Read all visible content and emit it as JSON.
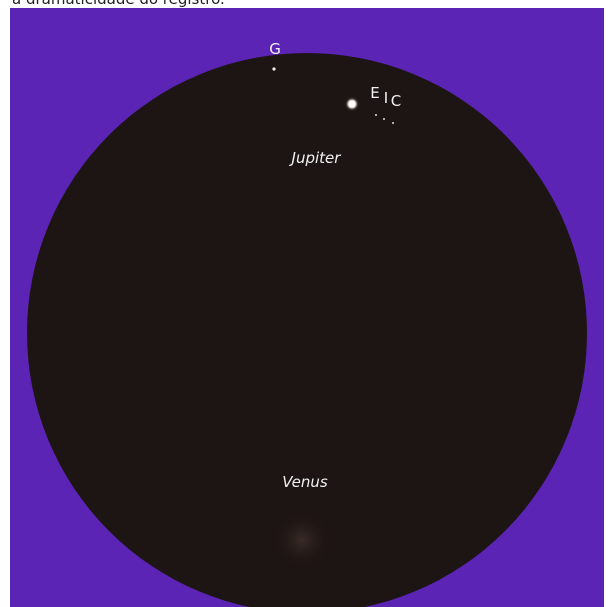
{
  "caption": "a dramaticidade do registro.",
  "labels": {
    "g": "G",
    "e": "E",
    "i": "I",
    "c": "C",
    "jupiter": "Jupiter",
    "venus": "Venus"
  }
}
